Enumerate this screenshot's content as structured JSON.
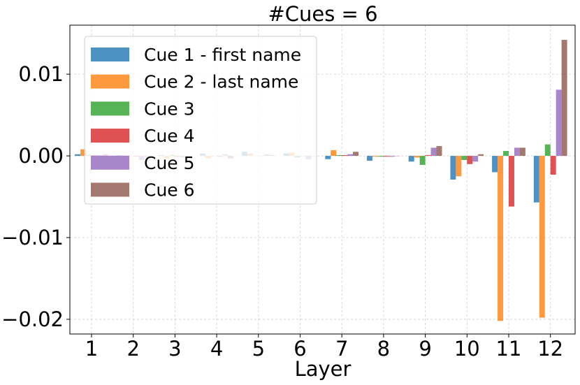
{
  "chart_data": {
    "type": "bar",
    "title": "#Cues = 6",
    "xlabel": "Layer",
    "ylabel": "",
    "categories": [
      "1",
      "2",
      "3",
      "4",
      "5",
      "6",
      "7",
      "8",
      "9",
      "10",
      "11",
      "12"
    ],
    "ylim": [
      -0.0218,
      0.016
    ],
    "yticks": [
      0.01,
      0.0,
      -0.01,
      -0.02
    ],
    "ytick_labels": [
      "0.01",
      "0.00",
      "−0.01",
      "−0.02"
    ],
    "grid": true,
    "legend_position": "top-left",
    "series": [
      {
        "name": "Cue 1 - first name",
        "color": "#1f77b4",
        "values": [
          0.0002,
          0.0001,
          0.0001,
          0.0003,
          0.0005,
          0.0003,
          -0.0004,
          -0.0006,
          -0.0007,
          -0.0029,
          -0.002,
          -0.0057
        ]
      },
      {
        "name": "Cue 2 - last name",
        "color": "#ff7f0e",
        "values": [
          0.0008,
          -0.0001,
          -0.0003,
          -0.0003,
          0.0003,
          0.0004,
          0.0007,
          -0.0001,
          -0.0002,
          -0.0025,
          -0.0202,
          -0.0198
        ]
      },
      {
        "name": "Cue 3",
        "color": "#2ca02c",
        "values": [
          0.0001,
          0.0,
          0.0001,
          0.0,
          0.0,
          -0.0002,
          0.0001,
          -0.0001,
          -0.0011,
          -0.0005,
          0.0006,
          0.0014
        ]
      },
      {
        "name": "Cue 4",
        "color": "#d62728",
        "values": [
          0.0001,
          -0.0001,
          -0.0001,
          -0.0001,
          0.0,
          0.0,
          0.0001,
          -0.0001,
          0.0001,
          -0.001,
          -0.0062,
          -0.0023
        ]
      },
      {
        "name": "Cue 5",
        "color": "#9467bd",
        "values": [
          0.0001,
          -0.0005,
          -0.0002,
          0.0002,
          0.0002,
          -0.0004,
          0.0002,
          -0.0001,
          0.001,
          -0.0007,
          0.001,
          0.0081
        ]
      },
      {
        "name": "Cue 6",
        "color": "#8c564b",
        "values": [
          0.0002,
          -0.0001,
          0.0,
          -0.0003,
          0.0001,
          0.0,
          0.0005,
          0.0,
          0.0012,
          0.0002,
          0.001,
          0.0142
        ]
      }
    ]
  }
}
